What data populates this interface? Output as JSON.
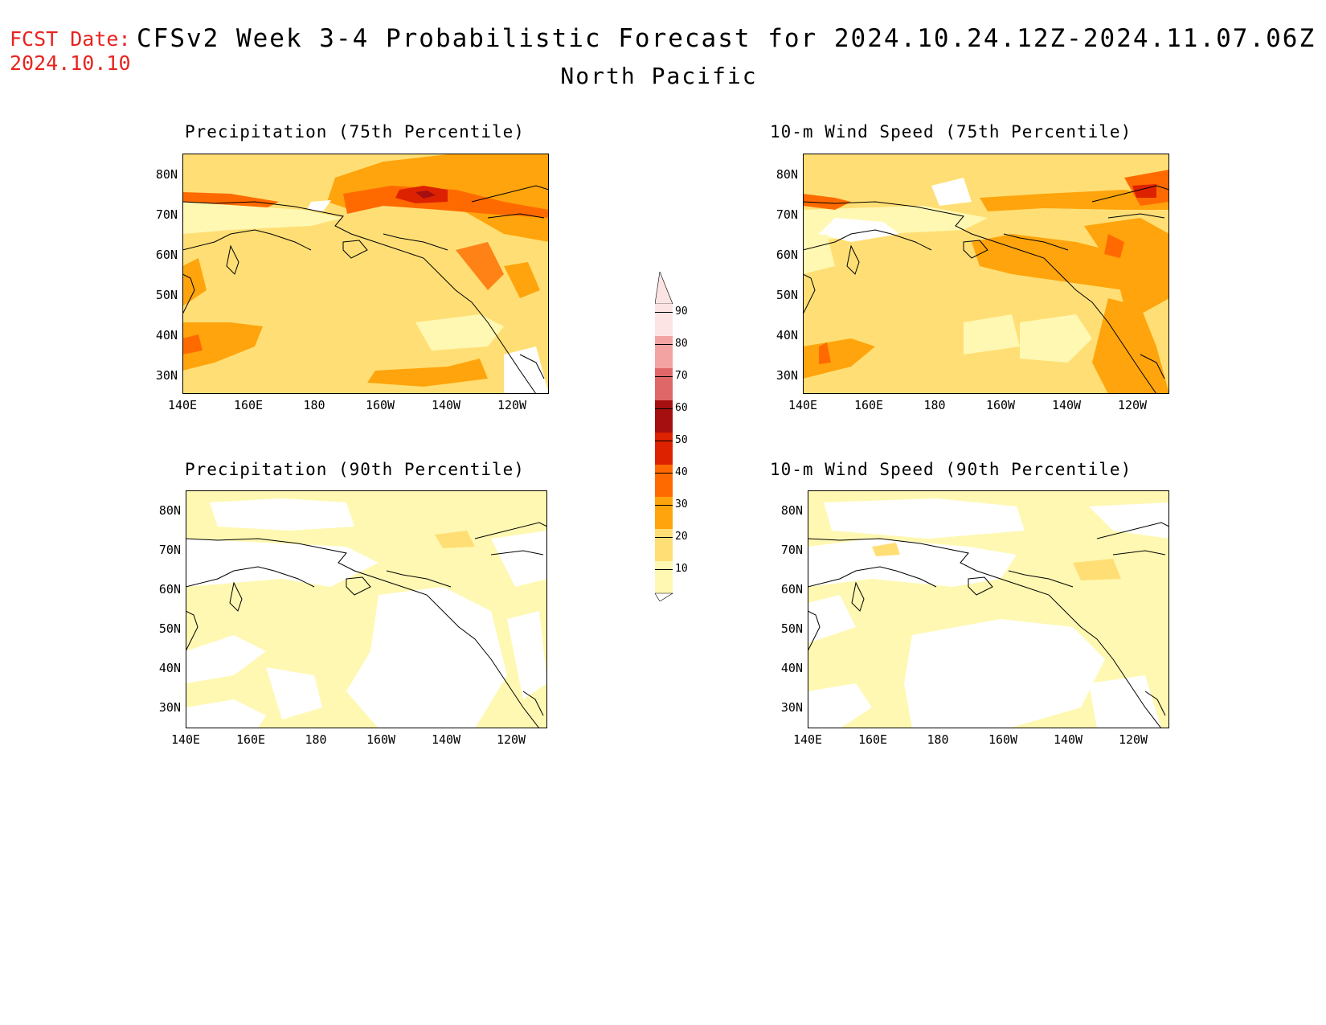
{
  "header": {
    "fcst_label": "FCST Date:",
    "fcst_date": "2024.10.10",
    "title": "CFSv2 Week 3-4 Probabilistic Forecast for 2024.10.24.12Z-2024.11.07.06Z",
    "region": "North Pacific"
  },
  "panels": [
    {
      "title": "Precipitation (75th Percentile)"
    },
    {
      "title": "10-m Wind Speed (75th Percentile)"
    },
    {
      "title": "Precipitation (90th Percentile)"
    },
    {
      "title": "10-m Wind Speed (90th Percentile)"
    }
  ],
  "axes": {
    "lat_labels": [
      "80N",
      "70N",
      "60N",
      "50N",
      "40N",
      "30N"
    ],
    "lon_labels": [
      "140E",
      "160E",
      "180",
      "160W",
      "140W",
      "120W"
    ]
  },
  "colorbar": {
    "levels": [
      "90",
      "80",
      "70",
      "60",
      "50",
      "40",
      "30",
      "20",
      "10"
    ],
    "colors": [
      "#fde4e4",
      "#f4a3a3",
      "#e06767",
      "#a50f0f",
      "#dd2200",
      "#ff6a00",
      "#ffa40c",
      "#ffdf75",
      "#fff8b2"
    ]
  }
}
